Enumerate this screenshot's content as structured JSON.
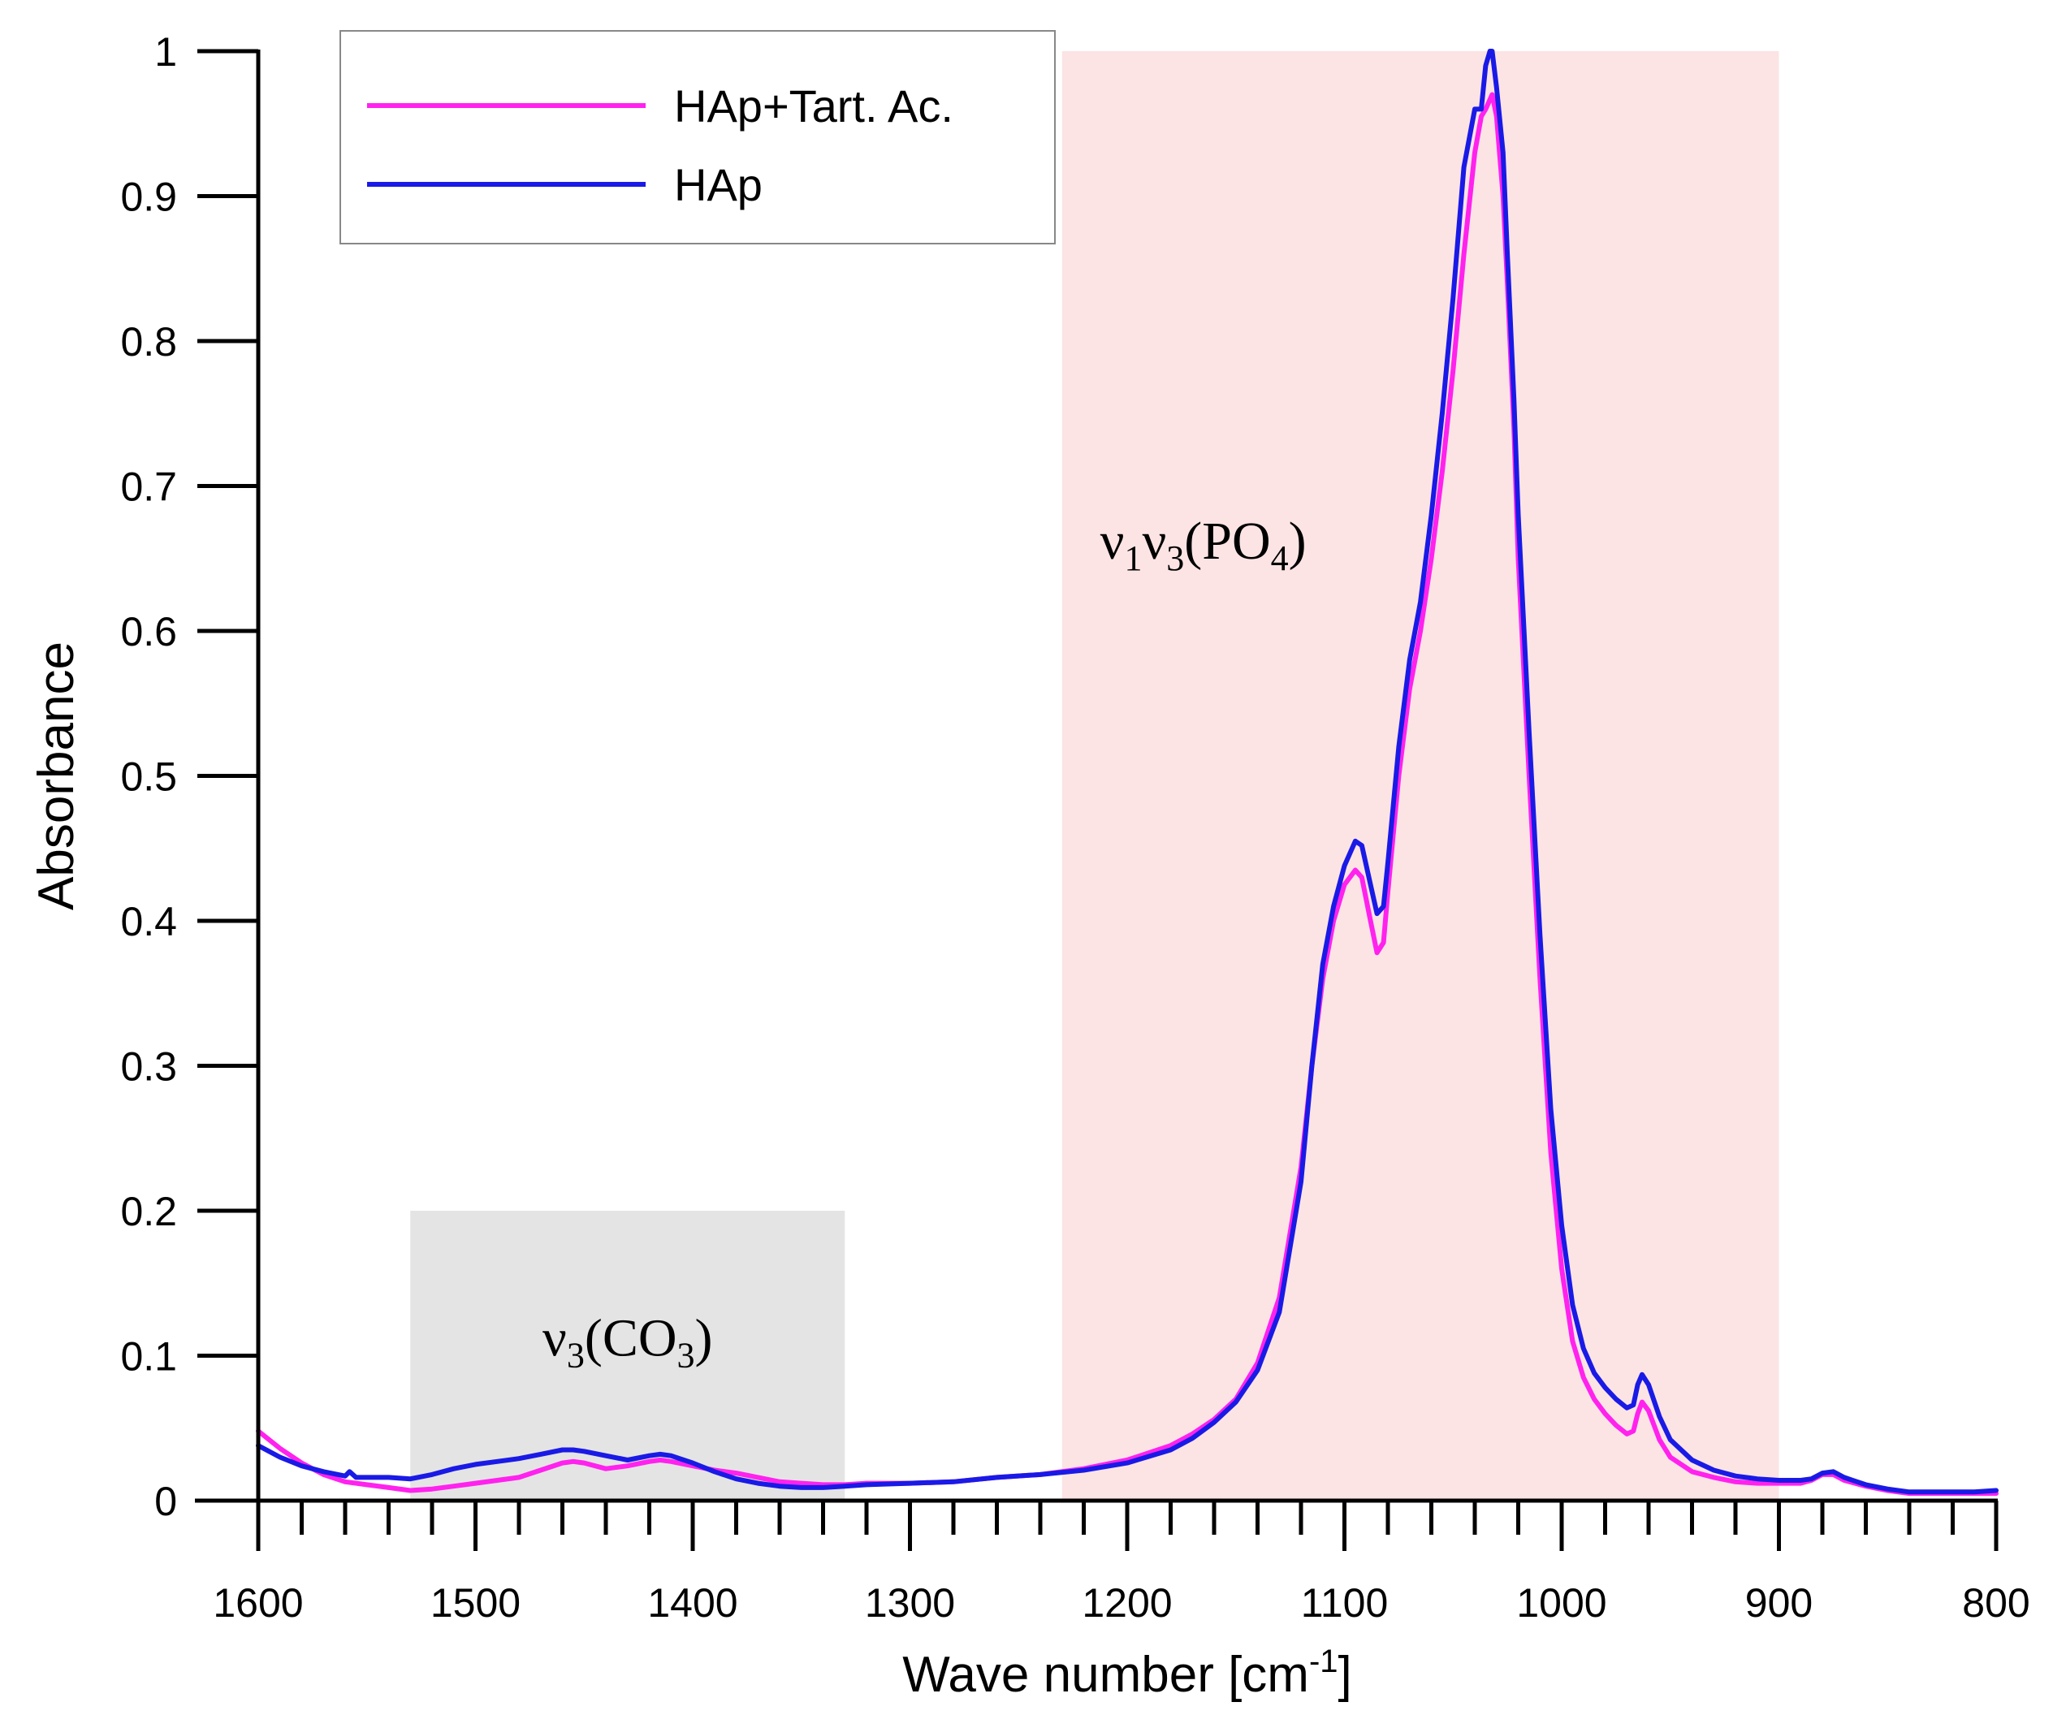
{
  "chart_data": {
    "type": "line",
    "title": "",
    "xlabel": "Wave number [cm",
    "xlabel_sup": "-1",
    "xlabel_end": "]",
    "ylabel": "Absorbance",
    "xlim": [
      1600,
      800
    ],
    "ylim": [
      0,
      1
    ],
    "x_reversed": true,
    "xticks": [
      1600,
      1500,
      1400,
      1300,
      1200,
      1100,
      1000,
      900,
      800
    ],
    "xtick_labels": [
      "1600",
      "1500",
      "1400",
      "1300",
      "1200",
      "1100",
      "1000",
      "900",
      "800"
    ],
    "yticks": [
      0,
      0.1,
      0.2,
      0.3,
      0.4,
      0.5,
      0.6,
      0.7,
      0.8,
      0.9,
      1
    ],
    "ytick_labels": [
      "0",
      "0.1",
      "0.2",
      "0.3",
      "0.4",
      "0.5",
      "0.6",
      "0.7",
      "0.8",
      "0.9",
      "1"
    ],
    "grid": false,
    "legend_position": "top-left",
    "regions": [
      {
        "name": "co3-region",
        "x0": 1530,
        "x1": 1330,
        "y0": 0,
        "y1": 0.2,
        "color": "#e4e4e4"
      },
      {
        "name": "po4-region",
        "x0": 1230,
        "x1": 900,
        "y0": 0,
        "y1": 1.0,
        "color": "#fce4e4"
      }
    ],
    "annotations": [
      {
        "name": "co3-annotation",
        "parts": [
          "ν",
          "3",
          "(CO",
          "3",
          ")"
        ],
        "x": 1430,
        "y": 0.1
      },
      {
        "name": "po4-annotation",
        "parts": [
          "ν",
          "1",
          "ν",
          "3",
          "(PO",
          "4",
          ")"
        ],
        "x": 1165,
        "y": 0.65
      }
    ],
    "series": [
      {
        "name": "HAp+Tart. Ac.",
        "color": "#ff22ee",
        "x": [
          1600,
          1590,
          1580,
          1570,
          1560,
          1550,
          1540,
          1530,
          1520,
          1510,
          1500,
          1490,
          1480,
          1470,
          1460,
          1455,
          1450,
          1440,
          1430,
          1420,
          1415,
          1410,
          1400,
          1390,
          1380,
          1370,
          1360,
          1350,
          1340,
          1330,
          1320,
          1300,
          1280,
          1260,
          1240,
          1220,
          1200,
          1180,
          1170,
          1160,
          1150,
          1140,
          1130,
          1120,
          1115,
          1110,
          1105,
          1100,
          1095,
          1092,
          1088,
          1085,
          1082,
          1080,
          1075,
          1070,
          1065,
          1060,
          1055,
          1050,
          1045,
          1040,
          1037,
          1035,
          1032,
          1030,
          1027,
          1025,
          1022,
          1020,
          1015,
          1010,
          1005,
          1000,
          995,
          990,
          985,
          980,
          975,
          970,
          967,
          965,
          963,
          960,
          955,
          950,
          940,
          930,
          920,
          910,
          900,
          890,
          885,
          880,
          875,
          870,
          860,
          850,
          840,
          830,
          820,
          810,
          800
        ],
        "y": [
          0.048,
          0.036,
          0.026,
          0.018,
          0.013,
          0.011,
          0.009,
          0.007,
          0.008,
          0.01,
          0.012,
          0.014,
          0.016,
          0.021,
          0.026,
          0.027,
          0.026,
          0.022,
          0.024,
          0.027,
          0.028,
          0.027,
          0.024,
          0.021,
          0.019,
          0.016,
          0.013,
          0.012,
          0.011,
          0.011,
          0.012,
          0.012,
          0.013,
          0.016,
          0.018,
          0.022,
          0.028,
          0.038,
          0.046,
          0.056,
          0.07,
          0.095,
          0.14,
          0.23,
          0.3,
          0.36,
          0.4,
          0.425,
          0.435,
          0.43,
          0.4,
          0.378,
          0.385,
          0.42,
          0.5,
          0.56,
          0.6,
          0.65,
          0.71,
          0.78,
          0.86,
          0.93,
          0.955,
          0.96,
          0.97,
          0.955,
          0.9,
          0.84,
          0.74,
          0.65,
          0.5,
          0.36,
          0.24,
          0.16,
          0.11,
          0.085,
          0.07,
          0.06,
          0.052,
          0.046,
          0.048,
          0.06,
          0.068,
          0.062,
          0.042,
          0.03,
          0.02,
          0.016,
          0.013,
          0.012,
          0.012,
          0.012,
          0.014,
          0.018,
          0.018,
          0.014,
          0.01,
          0.007,
          0.005,
          0.005,
          0.005,
          0.005,
          0.005
        ]
      },
      {
        "name": "HAp",
        "color": "#1a1ae6",
        "x": [
          1600,
          1590,
          1580,
          1570,
          1560,
          1558,
          1555,
          1550,
          1540,
          1530,
          1520,
          1510,
          1500,
          1490,
          1480,
          1470,
          1460,
          1455,
          1450,
          1440,
          1430,
          1420,
          1415,
          1410,
          1400,
          1390,
          1380,
          1370,
          1360,
          1350,
          1340,
          1330,
          1320,
          1300,
          1280,
          1260,
          1240,
          1220,
          1200,
          1180,
          1170,
          1160,
          1150,
          1140,
          1130,
          1120,
          1115,
          1110,
          1105,
          1100,
          1095,
          1092,
          1088,
          1085,
          1082,
          1080,
          1075,
          1070,
          1065,
          1060,
          1055,
          1050,
          1045,
          1040,
          1037,
          1035,
          1033,
          1032,
          1030,
          1027,
          1025,
          1022,
          1020,
          1015,
          1010,
          1005,
          1000,
          995,
          990,
          985,
          980,
          975,
          970,
          967,
          965,
          963,
          960,
          955,
          950,
          940,
          930,
          920,
          910,
          900,
          890,
          885,
          880,
          875,
          870,
          860,
          850,
          840,
          830,
          820,
          810,
          800
        ],
        "y": [
          0.038,
          0.03,
          0.024,
          0.02,
          0.017,
          0.02,
          0.016,
          0.016,
          0.016,
          0.015,
          0.018,
          0.022,
          0.025,
          0.027,
          0.029,
          0.032,
          0.035,
          0.035,
          0.034,
          0.031,
          0.028,
          0.031,
          0.032,
          0.031,
          0.026,
          0.02,
          0.015,
          0.012,
          0.01,
          0.009,
          0.009,
          0.01,
          0.011,
          0.012,
          0.013,
          0.016,
          0.018,
          0.021,
          0.026,
          0.035,
          0.043,
          0.054,
          0.068,
          0.09,
          0.13,
          0.22,
          0.3,
          0.37,
          0.41,
          0.438,
          0.455,
          0.452,
          0.425,
          0.405,
          0.41,
          0.44,
          0.52,
          0.58,
          0.62,
          0.68,
          0.75,
          0.83,
          0.92,
          0.96,
          0.96,
          0.99,
          1.0,
          1.0,
          0.975,
          0.93,
          0.86,
          0.76,
          0.68,
          0.53,
          0.39,
          0.27,
          0.19,
          0.135,
          0.105,
          0.088,
          0.078,
          0.07,
          0.064,
          0.066,
          0.08,
          0.087,
          0.08,
          0.058,
          0.042,
          0.028,
          0.021,
          0.017,
          0.015,
          0.014,
          0.014,
          0.015,
          0.019,
          0.02,
          0.016,
          0.011,
          0.008,
          0.006,
          0.006,
          0.006,
          0.006,
          0.007
        ]
      }
    ]
  }
}
